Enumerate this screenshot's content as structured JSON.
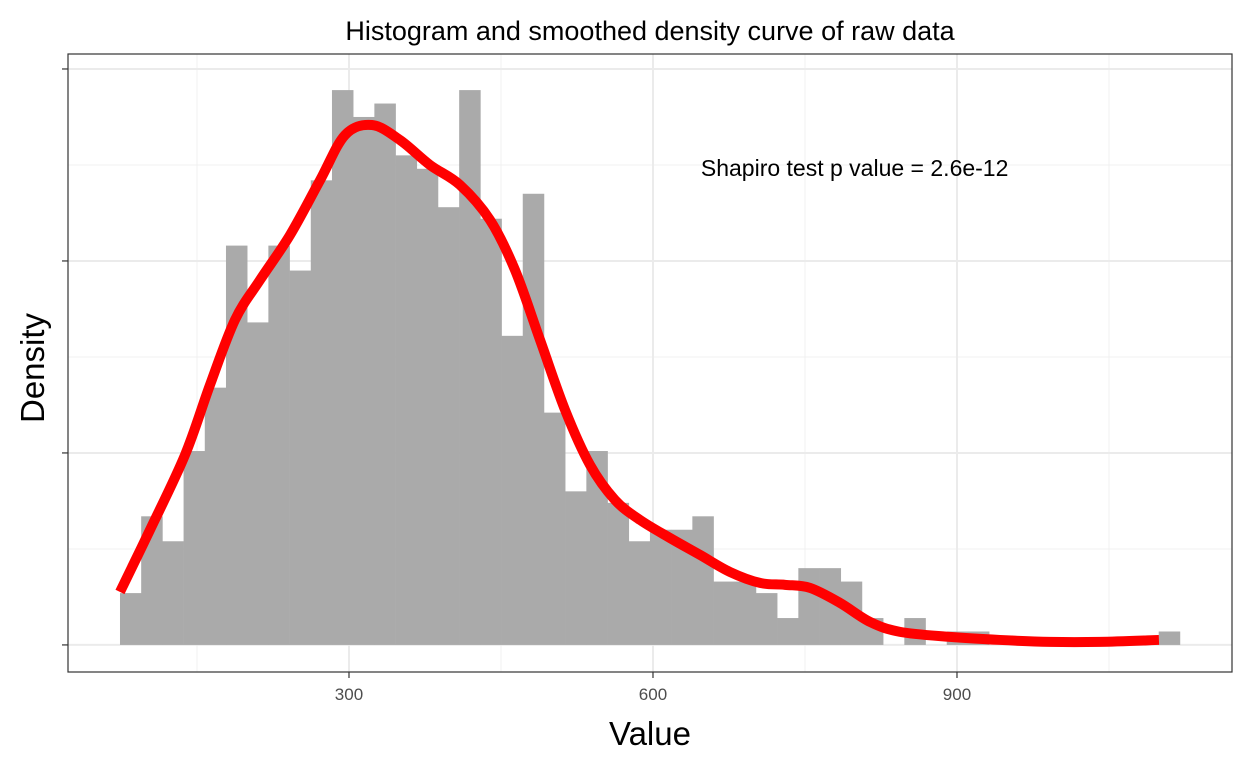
{
  "chart_data": {
    "type": "bar",
    "title": "Histogram and smoothed density curve of raw data",
    "xlabel": "Value",
    "ylabel": "Density",
    "xlim": [
      22.7,
      1171.4
    ],
    "ylim": [
      -0.000141,
      0.003078
    ],
    "x_major_ticks": [
      300,
      600,
      900
    ],
    "x_tick_labels": [
      "300",
      "600",
      "900"
    ],
    "x_minor_grid": [
      150,
      450,
      750,
      1050
    ],
    "y_major_ticks": [
      0,
      0.001,
      0.002,
      0.003
    ],
    "y_minor_grid": [
      0.0005,
      0.0015,
      0.0025
    ],
    "y_tick_labels_shown": false,
    "grid": true,
    "histogram": {
      "bin_start": 74.0,
      "bin_width": 20.92,
      "density": [
        0.00027,
        0.00067,
        0.00054,
        0.00101,
        0.00134,
        0.00208,
        0.00168,
        0.00208,
        0.00195,
        0.00242,
        0.00289,
        0.00275,
        0.00282,
        0.00255,
        0.00248,
        0.00228,
        0.00289,
        0.00222,
        0.00161,
        0.00235,
        0.00121,
        0.0008,
        0.00101,
        0.00074,
        0.00054,
        0.0006,
        0.0006,
        0.00067,
        0.00033,
        0.00033,
        0.00027,
        0.00014,
        0.0004,
        0.0004,
        0.00033,
        0.00014,
        0,
        0.00014,
        0,
        7e-05,
        7e-05,
        0,
        0,
        0,
        0,
        0,
        0,
        0,
        0,
        7e-05
      ],
      "color": "#AAAAAA"
    },
    "density_curve": {
      "color": "#FF0000",
      "x": [
        74,
        103.6,
        138.2,
        162.8,
        187.5,
        212.2,
        241.8,
        271.4,
        296.1,
        322.7,
        350.3,
        379.9,
        409.5,
        439.1,
        463.8,
        488.5,
        513.2,
        537.8,
        562.5,
        587.2,
        616.8,
        646.4,
        676,
        705.6,
        730.3,
        754.9,
        784.5,
        814.1,
        843.8,
        893.1,
        942.4,
        991.8,
        1041.1,
        1099.3
      ],
      "y": [
        0.000276,
        0.000599,
        0.00099,
        0.001354,
        0.001693,
        0.001901,
        0.002135,
        0.00242,
        0.002656,
        0.002708,
        0.00263,
        0.0025,
        0.002396,
        0.002214,
        0.001953,
        0.001589,
        0.001224,
        0.000938,
        0.000755,
        0.000651,
        0.000557,
        0.000469,
        0.00038,
        0.000323,
        0.000313,
        0.000297,
        0.000219,
        0.00012,
        6.8e-05,
        4.2e-05,
        2.6e-05,
        1.6e-05,
        1.6e-05,
        2.6e-05
      ]
    },
    "annotation": {
      "text": "Shapiro test p value = 2.6e-12",
      "x": 799,
      "y": 0.002484
    }
  }
}
